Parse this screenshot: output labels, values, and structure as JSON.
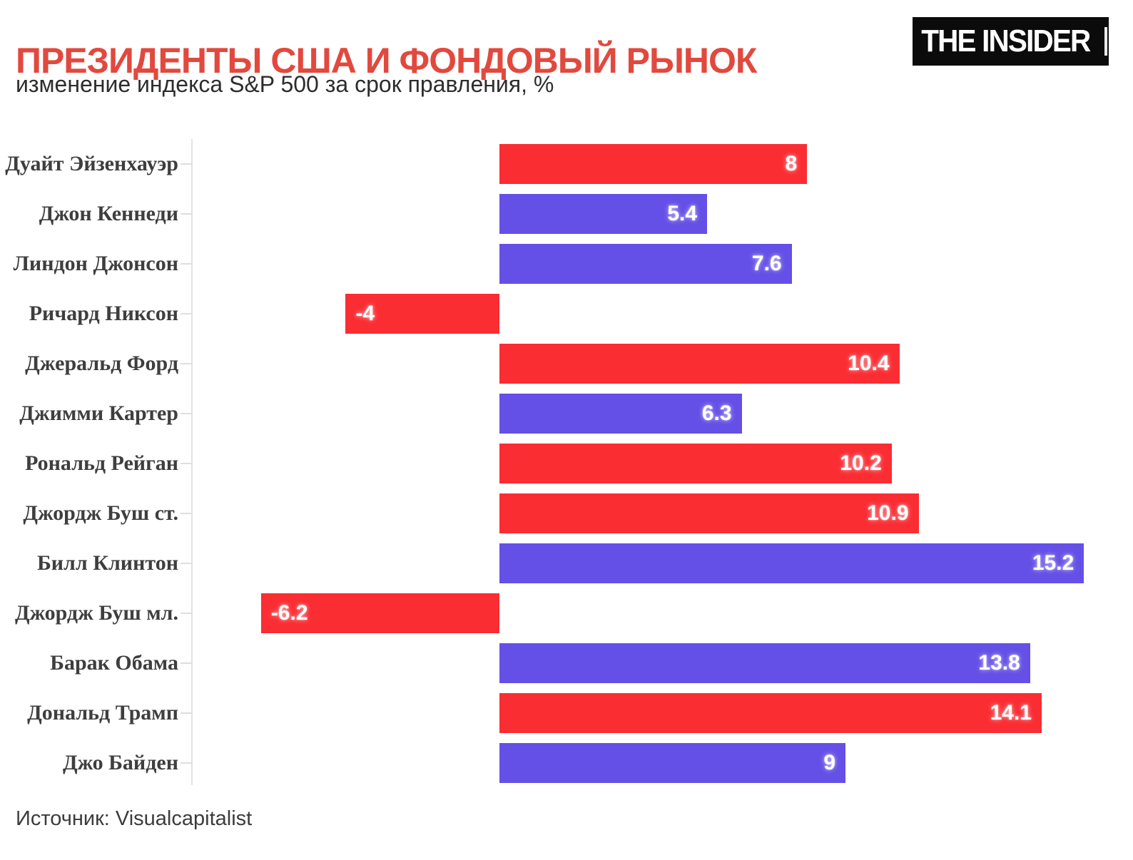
{
  "header": {
    "title": "ПРЕЗИДЕНТЫ США И ФОНДОВЫЙ РЫНОК",
    "subtitle": "изменение индекса S&P 500 за срок правления, %",
    "logo_text": "THE INSIDER"
  },
  "footer": {
    "source": "Источник: Visualcapitalist"
  },
  "colors": {
    "republican_bar": "#fa2d33",
    "democrat_bar": "#6450e6",
    "title_red": "#e2493e",
    "category_label": "#3e3e3e",
    "axis_gray": "#e3e3e3",
    "value_text": "#ffffff",
    "logo_background": "#0b0b0b"
  },
  "chart_data": {
    "type": "bar",
    "orientation": "horizontal",
    "title": "ПРЕЗИДЕНТЫ США И ФОНДОВЫЙ РЫНОК",
    "subtitle": "изменение индекса S&P 500 за срок правления, %",
    "xlabel": "",
    "ylabel": "",
    "value_suffix": "%",
    "xlim": [
      -8,
      16.5
    ],
    "grid": false,
    "legend": null,
    "categories": [
      "Дуайт Эйзенхауэр",
      "Джон Кеннеди",
      "Линдон Джонсон",
      "Ричард Никсон",
      "Джеральд Форд",
      "Джимми Картер",
      "Рональд Рейган",
      "Джордж Буш ст.",
      "Билл Клинтон",
      "Джордж Буш мл.",
      "Барак Обама",
      "Дональд Трамп",
      "Джо Байден"
    ],
    "values": [
      8,
      5.4,
      7.6,
      -4,
      10.4,
      6.3,
      10.2,
      10.9,
      15.2,
      -6.2,
      13.8,
      14.1,
      9
    ],
    "value_labels": [
      "8",
      "5.4",
      "7.6",
      "-4",
      "10.4",
      "6.3",
      "10.2",
      "10.9",
      "15.2",
      "-6.2",
      "13.8",
      "14.1",
      "9"
    ],
    "parties": [
      "rep",
      "dem",
      "dem",
      "rep",
      "rep",
      "dem",
      "rep",
      "rep",
      "dem",
      "rep",
      "dem",
      "rep",
      "dem"
    ]
  }
}
